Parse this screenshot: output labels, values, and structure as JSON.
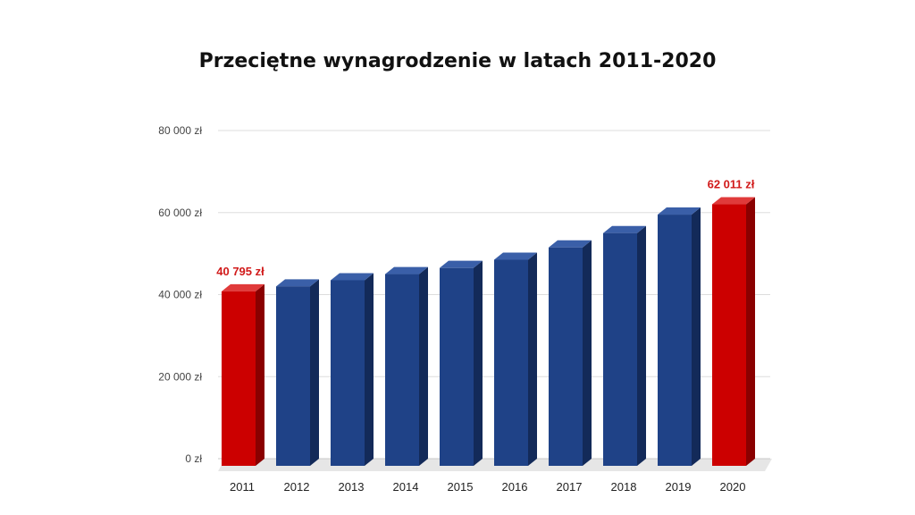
{
  "chart_data": {
    "type": "bar",
    "title": "Przeciętne wynagrodzenie w latach 2011-2020",
    "xlabel": "",
    "ylabel": "",
    "categories": [
      "2011",
      "2012",
      "2013",
      "2014",
      "2015",
      "2016",
      "2017",
      "2018",
      "2019",
      "2020"
    ],
    "values": [
      40795,
      42000,
      43500,
      45000,
      46500,
      48500,
      51500,
      55000,
      59500,
      62011
    ],
    "ylim": [
      0,
      80000
    ],
    "yticks": [
      {
        "value": 0,
        "label": "0 zł"
      },
      {
        "value": 20000,
        "label": "20 000 zł"
      },
      {
        "value": 40000,
        "label": "40 000 zł"
      },
      {
        "value": 60000,
        "label": "60 000 zł"
      },
      {
        "value": 80000,
        "label": "80 000 zł"
      }
    ],
    "data_labels": [
      {
        "index": 0,
        "text": "40 795 zł"
      },
      {
        "index": 9,
        "text": "62 011 zł"
      }
    ],
    "highlight_indices": [
      0,
      9
    ],
    "colors": {
      "bar": "#1f4287",
      "bar_top": "#3a5fa8",
      "bar_side": "#132a59",
      "highlight": "#cc0000",
      "highlight_top": "#e03a3a",
      "highlight_side": "#8a0000",
      "label_highlight": "#d11a1a",
      "grid": "#dddddd",
      "floor": "#e6e6e6"
    },
    "grid": true,
    "legend": "none"
  }
}
